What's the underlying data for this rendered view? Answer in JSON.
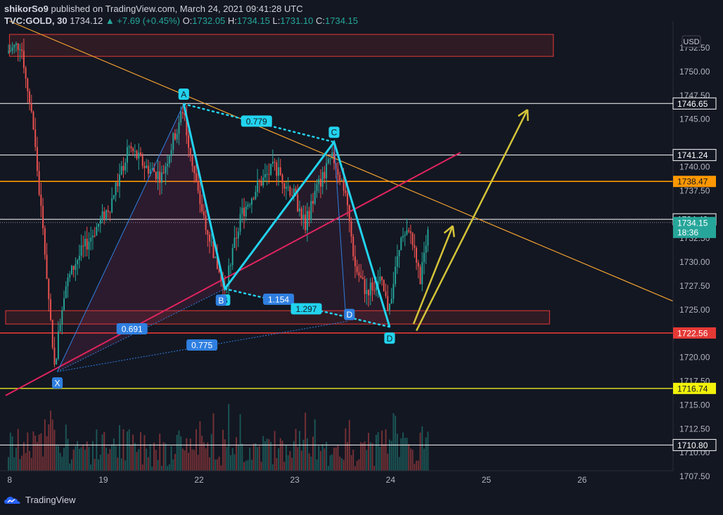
{
  "header": {
    "publisher": "shikorSo9",
    "published_text": "published on TradingView.com, March 24, 2021 09:41:28 UTC",
    "symbol": "TVC:GOLD, 30",
    "last": "1734.12",
    "change": "▲ +7.69 (+0.45%)",
    "o_label": "O:",
    "o": "1732.05",
    "h_label": "H:",
    "h": "1734.15",
    "l_label": "L:",
    "l": "1731.10",
    "c_label": "C:",
    "c": "1734.15"
  },
  "footer": {
    "brand": "TradingView"
  },
  "colors": {
    "bg": "#131722",
    "up": "#26a69a",
    "down": "#ef5350",
    "pattern": "#22d3ee",
    "arrow": "#d4c43a",
    "trend_orange": "#f0a030",
    "trend_pink": "#e0245e",
    "zone_red": "#e53935",
    "level_yellow": "#c8c820",
    "level_white": "#ffffff",
    "level_orange": "#ff9800"
  },
  "chart_data": {
    "type": "candlestick",
    "price_axis": {
      "unit": "USD",
      "ylim": [
        1708.1,
        1755.3
      ],
      "ticks": [
        "1752.50",
        "1750.00",
        "1747.50",
        "1745.00",
        "1740.00",
        "1737.50",
        "1732.50",
        "1730.00",
        "1727.50",
        "1725.00",
        "1720.00",
        "1717.50",
        "1715.00",
        "1712.50",
        "1710.00",
        "1707.50"
      ]
    },
    "time_axis": {
      "labels": [
        {
          "label": "8",
          "t": 0
        },
        {
          "label": "19",
          "t": 1
        },
        {
          "label": "22",
          "t": 2
        },
        {
          "label": "23",
          "t": 3
        },
        {
          "label": "24",
          "t": 4
        },
        {
          "label": "25",
          "t": 5
        },
        {
          "label": "26",
          "t": 6
        }
      ],
      "xlim": [
        -0.02,
        6.95
      ]
    },
    "current_price": {
      "value": 1734.15,
      "label": "1734.15",
      "countdown": "18:36"
    },
    "levels": [
      {
        "value": 1746.65,
        "label": "1746.65",
        "color": "#ffffff",
        "badge": "dark"
      },
      {
        "value": 1741.24,
        "label": "1741.24",
        "color": "#ffffff",
        "badge": "dark"
      },
      {
        "value": 1738.47,
        "label": "1738.47",
        "color": "#ff9800",
        "badge": "orange"
      },
      {
        "value": 1734.49,
        "label": "1734.49",
        "color": "#ffffff",
        "badge": "dark"
      },
      {
        "value": 1722.56,
        "label": "1722.56",
        "color": "#e53935",
        "badge": "red"
      },
      {
        "value": 1716.74,
        "label": "1716.74",
        "color": "#c8c820",
        "badge": "yellow"
      },
      {
        "value": 1710.8,
        "label": "1710.80",
        "color": "#ffffff",
        "badge": "dark"
      }
    ],
    "zones": [
      {
        "t0": 0.02,
        "t1": 5.7,
        "p0": 1751.6,
        "p1": 1753.9
      },
      {
        "t0": -0.02,
        "t1": 5.66,
        "p0": 1723.5,
        "p1": 1724.9
      }
    ],
    "harmonic_pattern": {
      "points": [
        {
          "label": "X",
          "t": 0.52,
          "p": 1718.5
        },
        {
          "label": "A",
          "t": 1.84,
          "p": 1746.6
        },
        {
          "label": "B",
          "t": 2.27,
          "p": 1727.2
        },
        {
          "label": "C",
          "t": 3.41,
          "p": 1742.6
        },
        {
          "label": "D",
          "t": 3.99,
          "p": 1723.2
        }
      ],
      "extra_labels": [
        {
          "label": "B",
          "t": 2.23,
          "p": 1726.0
        },
        {
          "label": "D",
          "t": 3.57,
          "p": 1724.5
        }
      ],
      "ratios": [
        {
          "label": "0.779",
          "t": 2.6,
          "p": 1744.8,
          "style": "cyan"
        },
        {
          "label": "1.154",
          "t": 2.83,
          "p": 1726.1,
          "style": "blue"
        },
        {
          "label": "1.297",
          "t": 3.12,
          "p": 1725.1,
          "style": "cyan"
        },
        {
          "label": "0.691",
          "t": 1.3,
          "p": 1723.0,
          "style": "blue"
        },
        {
          "label": "0.775",
          "t": 2.03,
          "p": 1721.3,
          "style": "blue"
        }
      ]
    },
    "trendlines": [
      {
        "t0": 0.02,
        "p0": 1755.3,
        "t1": 6.95,
        "p1": 1725.9,
        "color": "#f0a030"
      },
      {
        "t0": -0.02,
        "p0": 1716.0,
        "t1": 4.73,
        "p1": 1741.5,
        "color": "#e0245e"
      }
    ],
    "arrows": [
      {
        "t0": 4.24,
        "p0": 1723.5,
        "t1": 4.65,
        "p1": 1733.8
      },
      {
        "t0": 4.27,
        "p0": 1722.8,
        "t1": 5.43,
        "p1": 1746.0
      }
    ]
  }
}
